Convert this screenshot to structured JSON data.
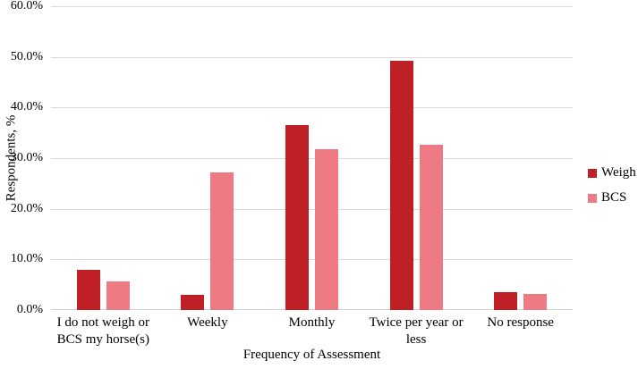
{
  "chart_data": {
    "type": "bar",
    "title": "",
    "xlabel": "Frequency of Assessment",
    "ylabel": "Respondents, %",
    "categories": [
      "I do not weigh or BCS my horse(s)",
      "Weekly",
      "Monthly",
      "Twice per year or less",
      "No response"
    ],
    "series": [
      {
        "name": "Weigh",
        "color": "#bf2026",
        "values": [
          8.0,
          3.0,
          36.6,
          49.3,
          3.5
        ]
      },
      {
        "name": "BCS",
        "color": "#ee7b83",
        "values": [
          5.6,
          27.1,
          31.8,
          32.7,
          3.1
        ]
      }
    ],
    "ylim": [
      0,
      60
    ],
    "yticks": [
      {
        "label": "0.0%",
        "value": 0
      },
      {
        "label": "10.0%",
        "value": 10
      },
      {
        "label": "20.0%",
        "value": 20
      },
      {
        "label": "30.0%",
        "value": 30
      },
      {
        "label": "40.0%",
        "value": 40
      },
      {
        "label": "50.0%",
        "value": 50
      },
      {
        "label": "60.0%",
        "value": 60
      }
    ],
    "grid": "horizontal",
    "legend_position": "right",
    "gridline_color": "#d9d9d9"
  }
}
